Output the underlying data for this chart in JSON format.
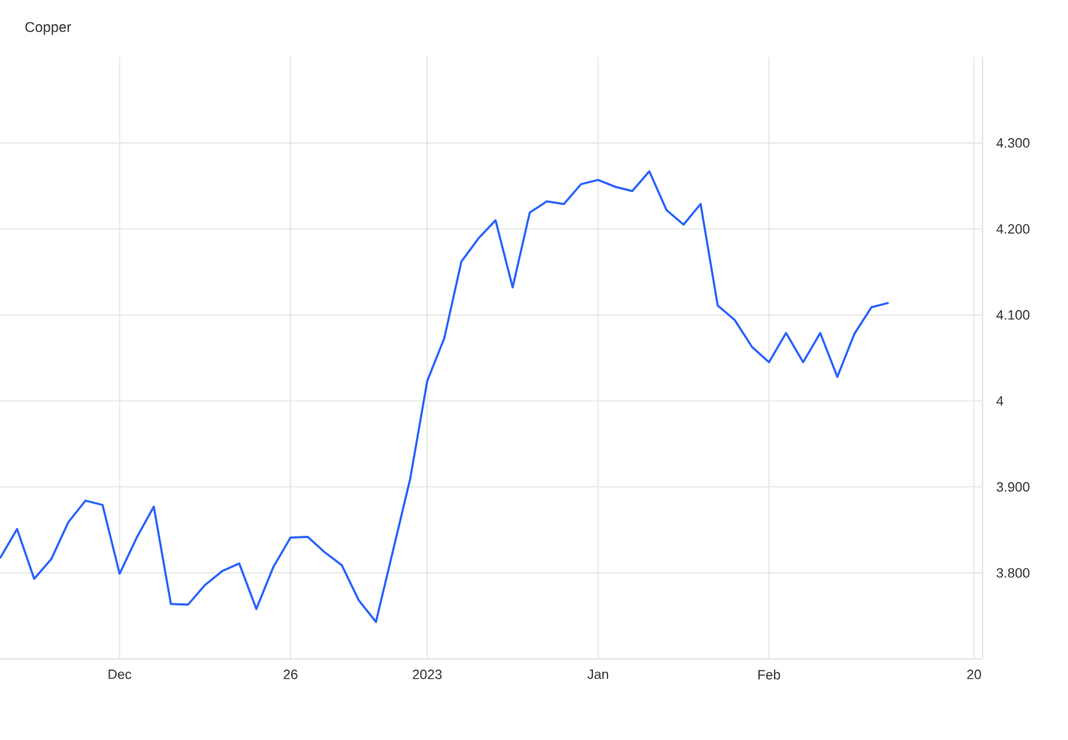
{
  "chart_data": {
    "type": "line",
    "title": "Copper",
    "categories": [
      null,
      null,
      null,
      null,
      null,
      null,
      null,
      "Dec",
      null,
      null,
      null,
      null,
      null,
      null,
      null,
      null,
      null,
      "26",
      null,
      null,
      null,
      null,
      null,
      null,
      null,
      "2023",
      null,
      null,
      null,
      null,
      null,
      null,
      null,
      null,
      null,
      "Jan",
      null,
      null,
      null,
      null,
      null,
      null,
      null,
      null,
      null,
      "Feb",
      null,
      null,
      null,
      null,
      null,
      null,
      null,
      null,
      null,
      null,
      null,
      "20"
    ],
    "series": [
      {
        "color": "#2962ff",
        "values": [
          3.817,
          3.851,
          3.793,
          3.816,
          3.859,
          3.884,
          3.879,
          3.799,
          3.841,
          3.877,
          3.764,
          3.763,
          3.786,
          3.802,
          3.811,
          3.758,
          3.807,
          3.841,
          3.842,
          3.824,
          3.809,
          3.768,
          3.743,
          3.826,
          3.909,
          4.023,
          4.073,
          4.162,
          4.189,
          4.21,
          4.132,
          4.219,
          4.232,
          4.229,
          4.252,
          4.257,
          4.249,
          4.244,
          4.267,
          4.222,
          4.205,
          4.229,
          4.111,
          4.094,
          4.063,
          4.045,
          4.079,
          4.045,
          4.079,
          4.028,
          4.078,
          4.109,
          4.114,
          null,
          null,
          null,
          null,
          null
        ]
      }
    ],
    "ylim": [
      3.7,
      4.4
    ],
    "yticks": [
      {
        "value": 3.8,
        "label": "3.800"
      },
      {
        "value": 3.9,
        "label": "3.900"
      },
      4,
      {
        "value": 4.1,
        "label": "4.100"
      },
      {
        "value": 4.2,
        "label": "4.200"
      },
      {
        "value": 4.3,
        "label": "4.300"
      }
    ],
    "grid": true,
    "marker": "none",
    "line_style": "solid"
  }
}
